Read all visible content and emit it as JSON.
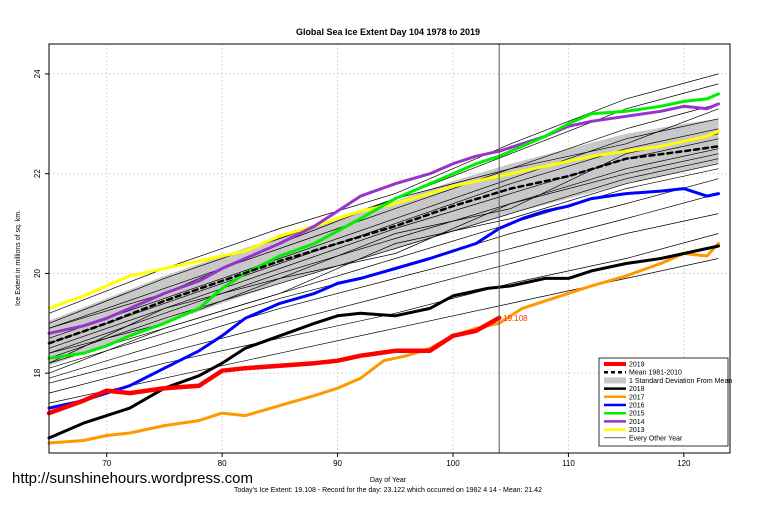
{
  "chart_data": {
    "type": "line",
    "title": "Global Sea Ice Extent Day 104 1978 to 2019",
    "xlabel": "Day of Year",
    "ylabel": "Ice Extent in millions of sq. km.",
    "xlim": [
      65,
      124
    ],
    "ylim": [
      16.4,
      24.6
    ],
    "x_ticks": [
      70,
      80,
      90,
      100,
      110,
      120
    ],
    "y_ticks": [
      18,
      20,
      22,
      24
    ],
    "grid": true,
    "current_day_marker": 104,
    "current_value_label": "19.108",
    "legend_position": "bottom-right",
    "band": {
      "name": "1 Standard Deviation From Mean",
      "x": [
        65,
        70,
        75,
        80,
        85,
        90,
        95,
        100,
        105,
        110,
        115,
        120,
        123
      ],
      "upper": [
        19.05,
        19.5,
        19.95,
        20.35,
        20.75,
        21.1,
        21.45,
        21.85,
        22.2,
        22.5,
        22.8,
        23.0,
        23.1
      ],
      "lower": [
        18.15,
        18.55,
        19.0,
        19.4,
        19.8,
        20.15,
        20.5,
        20.85,
        21.2,
        21.5,
        21.8,
        22.05,
        22.2
      ]
    },
    "series": [
      {
        "name": "2019",
        "color": "#ff0000",
        "width": 4.5,
        "dash": "",
        "x": [
          65,
          68,
          70,
          72,
          75,
          78,
          80,
          82,
          85,
          88,
          90,
          92,
          95,
          98,
          100,
          102,
          104
        ],
        "y": [
          17.2,
          17.45,
          17.65,
          17.6,
          17.7,
          17.75,
          18.05,
          18.1,
          18.15,
          18.2,
          18.25,
          18.35,
          18.45,
          18.45,
          18.75,
          18.85,
          19.108
        ]
      },
      {
        "name": "Mean 1981-2010",
        "color": "#000000",
        "width": 2.5,
        "dash": "5,4",
        "x": [
          65,
          70,
          75,
          80,
          85,
          90,
          95,
          100,
          105,
          110,
          115,
          120,
          123
        ],
        "y": [
          18.6,
          19.0,
          19.45,
          19.85,
          20.25,
          20.6,
          20.95,
          21.35,
          21.7,
          21.95,
          22.3,
          22.45,
          22.55
        ]
      },
      {
        "name": "2018",
        "color": "#000000",
        "width": 3,
        "dash": "",
        "x": [
          65,
          68,
          72,
          75,
          78,
          80,
          82,
          85,
          88,
          90,
          92,
          95,
          98,
          100,
          103,
          105,
          108,
          110,
          112,
          115,
          118,
          120,
          123
        ],
        "y": [
          16.7,
          17.0,
          17.3,
          17.7,
          17.95,
          18.2,
          18.5,
          18.75,
          19.0,
          19.15,
          19.2,
          19.15,
          19.3,
          19.55,
          19.7,
          19.75,
          19.9,
          19.9,
          20.05,
          20.2,
          20.3,
          20.4,
          20.55
        ]
      },
      {
        "name": "2017",
        "color": "#ff9900",
        "width": 3,
        "dash": "",
        "x": [
          65,
          68,
          70,
          72,
          75,
          78,
          80,
          82,
          85,
          88,
          90,
          92,
          94,
          96,
          98,
          100,
          102,
          104,
          106,
          108,
          110,
          112,
          115,
          118,
          120,
          122,
          123
        ],
        "y": [
          16.6,
          16.65,
          16.75,
          16.8,
          16.95,
          17.05,
          17.2,
          17.15,
          17.35,
          17.55,
          17.7,
          17.9,
          18.25,
          18.35,
          18.5,
          18.75,
          18.9,
          19.0,
          19.3,
          19.45,
          19.6,
          19.75,
          19.95,
          20.2,
          20.4,
          20.35,
          20.6
        ]
      },
      {
        "name": "2016",
        "color": "#0000ff",
        "width": 3,
        "dash": "",
        "x": [
          65,
          68,
          70,
          72,
          75,
          78,
          80,
          82,
          85,
          88,
          90,
          92,
          95,
          98,
          100,
          102,
          104,
          106,
          108,
          110,
          112,
          115,
          118,
          120,
          122,
          123
        ],
        "y": [
          17.3,
          17.45,
          17.6,
          17.75,
          18.1,
          18.45,
          18.75,
          19.1,
          19.4,
          19.6,
          19.8,
          19.9,
          20.1,
          20.3,
          20.45,
          20.6,
          20.9,
          21.1,
          21.25,
          21.35,
          21.5,
          21.6,
          21.65,
          21.7,
          21.55,
          21.6
        ]
      },
      {
        "name": "2015",
        "color": "#00ee00",
        "width": 3,
        "dash": "",
        "x": [
          65,
          68,
          70,
          72,
          75,
          78,
          80,
          82,
          85,
          88,
          90,
          92,
          95,
          98,
          100,
          102,
          104,
          106,
          108,
          110,
          112,
          115,
          118,
          120,
          122,
          123
        ],
        "y": [
          18.3,
          18.4,
          18.55,
          18.75,
          19.0,
          19.3,
          19.7,
          20.0,
          20.35,
          20.6,
          20.85,
          21.1,
          21.5,
          21.8,
          22.0,
          22.2,
          22.35,
          22.55,
          22.75,
          23.0,
          23.2,
          23.25,
          23.35,
          23.45,
          23.5,
          23.6
        ]
      },
      {
        "name": "2014",
        "color": "#9933cc",
        "width": 3,
        "dash": "",
        "x": [
          65,
          68,
          70,
          72,
          75,
          78,
          80,
          82,
          85,
          88,
          90,
          92,
          95,
          98,
          100,
          102,
          104,
          106,
          108,
          110,
          112,
          115,
          118,
          120,
          122,
          123
        ],
        "y": [
          18.8,
          18.95,
          19.1,
          19.3,
          19.6,
          19.85,
          20.1,
          20.3,
          20.6,
          20.95,
          21.25,
          21.55,
          21.8,
          22.0,
          22.2,
          22.35,
          22.45,
          22.6,
          22.75,
          22.95,
          23.05,
          23.15,
          23.25,
          23.35,
          23.3,
          23.4
        ]
      },
      {
        "name": "2013",
        "color": "#ffff00",
        "width": 3,
        "dash": "",
        "x": [
          65,
          68,
          70,
          72,
          75,
          78,
          80,
          82,
          85,
          88,
          90,
          92,
          95,
          98,
          100,
          102,
          104,
          106,
          108,
          110,
          112,
          115,
          118,
          120,
          122,
          123
        ],
        "y": [
          19.3,
          19.55,
          19.75,
          19.95,
          20.1,
          20.25,
          20.35,
          20.45,
          20.75,
          20.95,
          21.1,
          21.25,
          21.4,
          21.6,
          21.75,
          21.85,
          21.95,
          22.05,
          22.15,
          22.25,
          22.35,
          22.45,
          22.55,
          22.65,
          22.75,
          22.85
        ]
      }
    ],
    "other_years_name": "Every Other Year",
    "other_years": [
      {
        "x": [
          65,
          75,
          85,
          95,
          105,
          115,
          123
        ],
        "y": [
          19.2,
          20.1,
          20.9,
          21.6,
          22.6,
          23.5,
          24.0
        ]
      },
      {
        "x": [
          65,
          75,
          85,
          95,
          105,
          115,
          123
        ],
        "y": [
          19.0,
          19.9,
          20.7,
          21.5,
          22.4,
          23.3,
          23.8
        ]
      },
      {
        "x": [
          65,
          75,
          85,
          95,
          105,
          115,
          123
        ],
        "y": [
          18.9,
          19.7,
          20.5,
          21.3,
          22.1,
          22.9,
          23.4
        ]
      },
      {
        "x": [
          65,
          75,
          85,
          95,
          105,
          115,
          123
        ],
        "y": [
          18.7,
          19.5,
          20.3,
          21.1,
          21.9,
          22.7,
          23.1
        ]
      },
      {
        "x": [
          65,
          75,
          85,
          95,
          105,
          115,
          123
        ],
        "y": [
          18.6,
          19.4,
          20.2,
          21.0,
          21.8,
          22.5,
          22.9
        ]
      },
      {
        "x": [
          65,
          75,
          85,
          95,
          105,
          115,
          123
        ],
        "y": [
          18.5,
          19.3,
          20.1,
          20.9,
          21.6,
          22.3,
          22.7
        ]
      },
      {
        "x": [
          65,
          75,
          85,
          95,
          105,
          115,
          123
        ],
        "y": [
          18.4,
          19.2,
          20.0,
          20.7,
          21.4,
          22.1,
          22.5
        ]
      },
      {
        "x": [
          65,
          75,
          85,
          95,
          105,
          115,
          123
        ],
        "y": [
          18.3,
          19.1,
          19.8,
          20.5,
          21.2,
          21.9,
          22.3
        ]
      },
      {
        "x": [
          65,
          75,
          85,
          95,
          105,
          115,
          123
        ],
        "y": [
          18.2,
          18.9,
          19.6,
          20.3,
          21.0,
          21.7,
          22.1
        ]
      },
      {
        "x": [
          65,
          75,
          85,
          95,
          105,
          115,
          123
        ],
        "y": [
          18.1,
          18.8,
          19.5,
          20.1,
          20.8,
          21.4,
          21.9
        ]
      },
      {
        "x": [
          65,
          75,
          85,
          95,
          105,
          115,
          123
        ],
        "y": [
          17.9,
          18.6,
          19.3,
          19.9,
          20.5,
          21.1,
          21.6
        ]
      },
      {
        "x": [
          65,
          75,
          85,
          95,
          105,
          115,
          123
        ],
        "y": [
          17.8,
          18.4,
          19.0,
          19.6,
          20.2,
          20.8,
          21.2
        ]
      },
      {
        "x": [
          65,
          75,
          85,
          95,
          105,
          115,
          123
        ],
        "y": [
          17.6,
          18.2,
          18.7,
          19.2,
          19.8,
          20.3,
          20.8
        ]
      },
      {
        "x": [
          65,
          75,
          85,
          95,
          105,
          115,
          123
        ],
        "y": [
          17.4,
          17.9,
          18.4,
          18.9,
          19.4,
          19.9,
          20.3
        ]
      },
      {
        "x": [
          65,
          75,
          85,
          95,
          105,
          115,
          123
        ],
        "y": [
          18.4,
          19.0,
          19.9,
          20.8,
          21.3,
          22.4,
          22.8
        ]
      },
      {
        "x": [
          65,
          75,
          85,
          95,
          105,
          115,
          123
        ],
        "y": [
          18.2,
          19.3,
          19.9,
          20.4,
          21.4,
          22.0,
          22.4
        ]
      },
      {
        "x": [
          65,
          75,
          85,
          95,
          105,
          115,
          123
        ],
        "y": [
          18.9,
          19.6,
          20.6,
          21.5,
          22.1,
          22.6,
          23.3
        ]
      },
      {
        "x": [
          65,
          75,
          85,
          95,
          105,
          115,
          123
        ],
        "y": [
          18.0,
          18.9,
          19.6,
          20.6,
          21.1,
          21.8,
          22.2
        ]
      }
    ],
    "footer": "Today's Ice Extent: 19.108  - Record for the day: 23.122 which occurred on 1982 4 14  - Mean: 21.42"
  },
  "watermark": "http://sunshinehours.wordpress.com"
}
